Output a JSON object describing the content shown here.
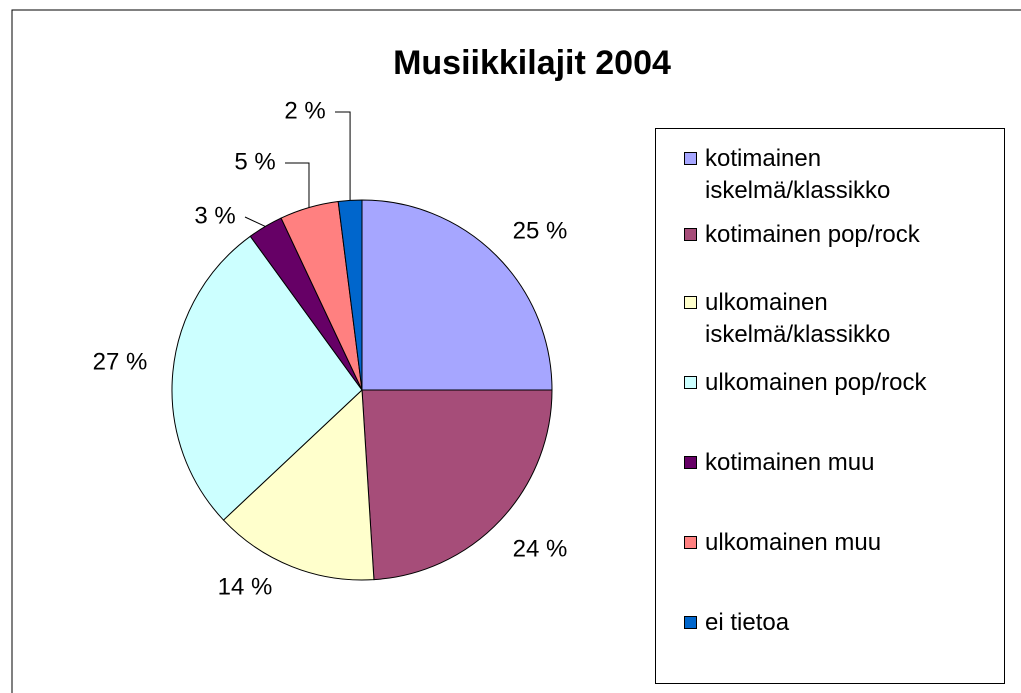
{
  "chart_data": {
    "type": "pie",
    "title": "Musiikkilajit 2004",
    "categories": [
      "kotimainen iskelmä/klassikko",
      "kotimainen pop/rock",
      "ulkomainen iskelmä/klassikko",
      "ulkomainen pop/rock",
      "kotimainen muu",
      "ulkomainen muu",
      "ei tietoa"
    ],
    "values": [
      25,
      24,
      14,
      27,
      3,
      5,
      2
    ],
    "value_labels": [
      "25 %",
      "24 %",
      "14 %",
      "27 %",
      "3 %",
      "5 %",
      "2 %"
    ],
    "colors": [
      "#a6a6ff",
      "#a64d79",
      "#ffffcc",
      "#ccffff",
      "#660066",
      "#ff8080",
      "#0066cc"
    ],
    "legend": "right"
  }
}
